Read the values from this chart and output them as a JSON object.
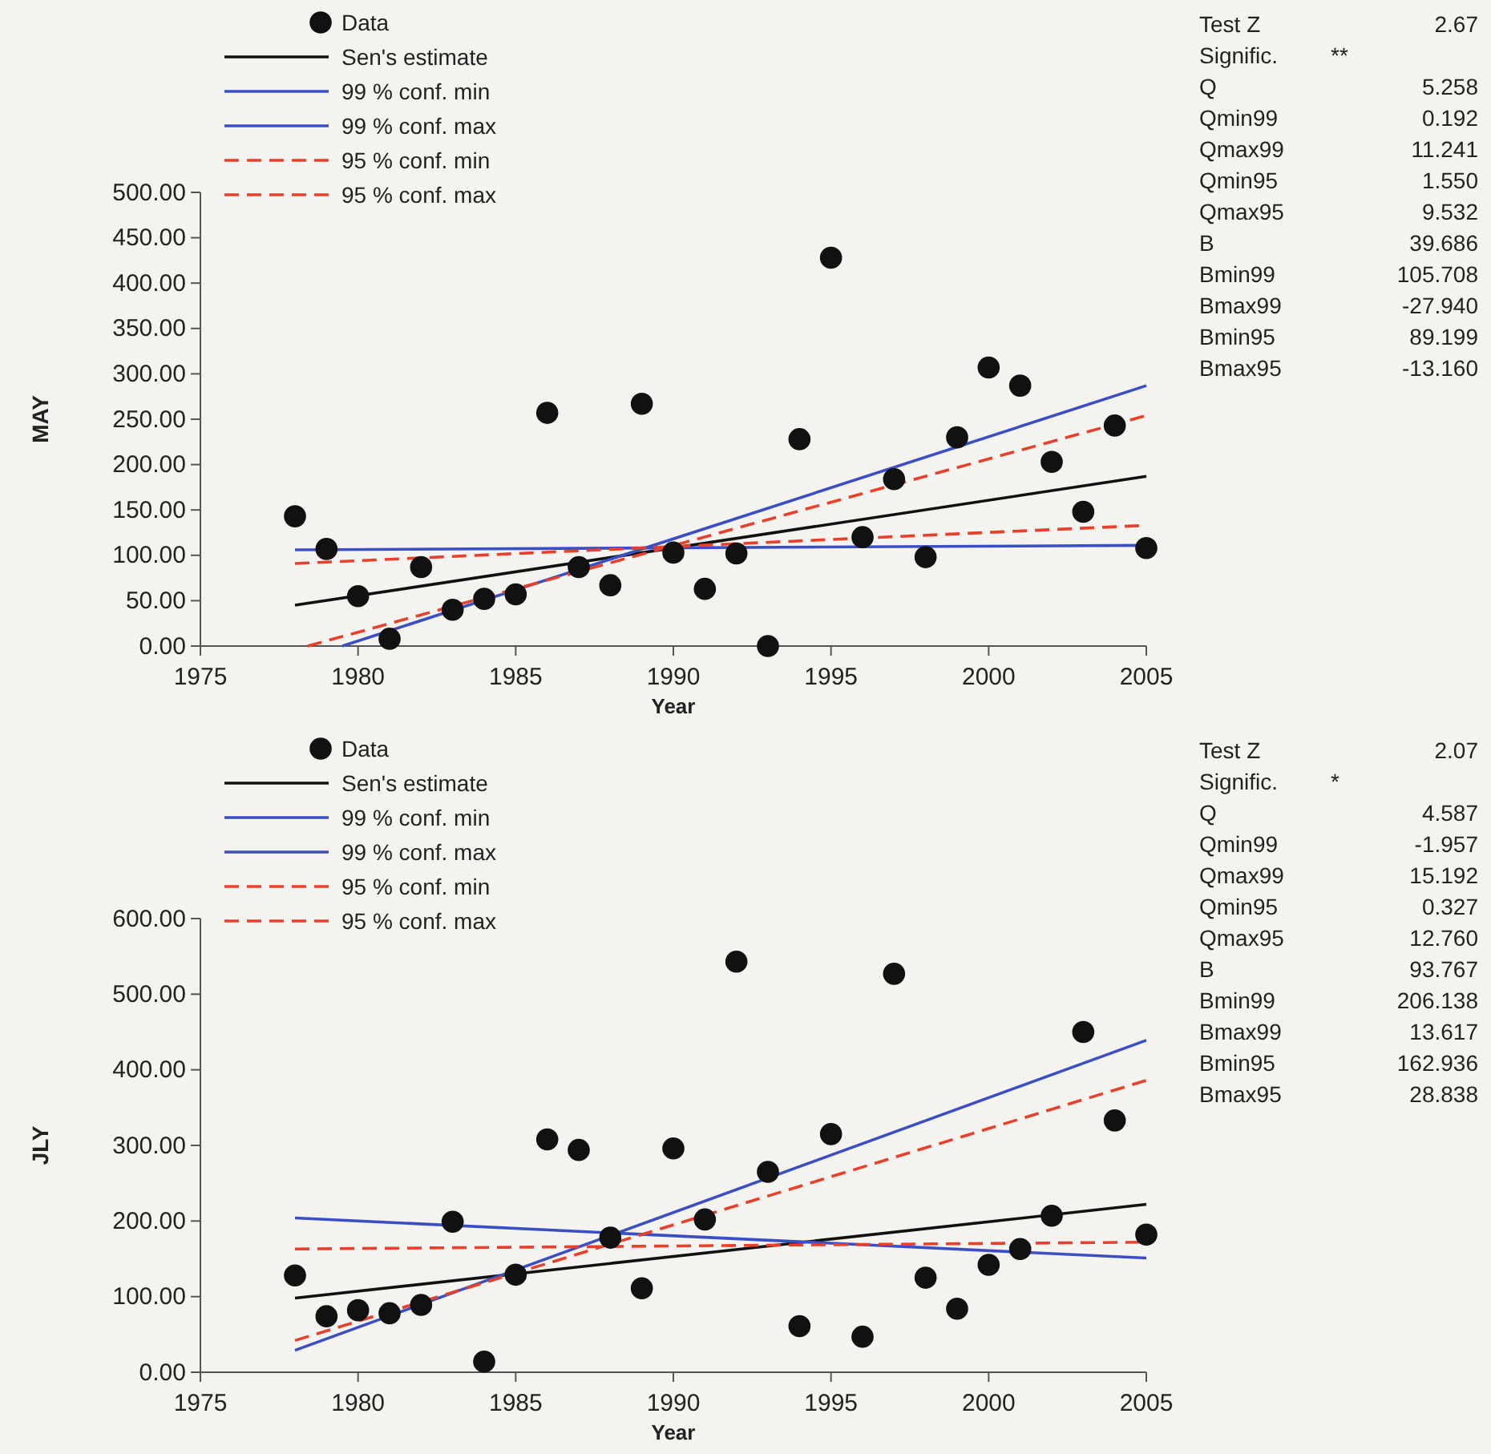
{
  "chart_data": [
    {
      "type": "scatter",
      "xlabel": "Year",
      "ylabel": "MAY",
      "xlim": [
        1975,
        2005
      ],
      "xticks": [
        1975,
        1980,
        1985,
        1990,
        1995,
        2000,
        2005
      ],
      "ylim": [
        0,
        500
      ],
      "yticks": [
        {
          "value": 0,
          "label": "0.00"
        },
        {
          "value": 50,
          "label": "50.00"
        },
        {
          "value": 100,
          "label": "100.00"
        },
        {
          "value": 150,
          "label": "150.00"
        },
        {
          "value": 200,
          "label": "200.00"
        },
        {
          "value": 250,
          "label": "250.00"
        },
        {
          "value": 300,
          "label": "300.00"
        },
        {
          "value": 350,
          "label": "350.00"
        },
        {
          "value": 400,
          "label": "400.00"
        },
        {
          "value": 450,
          "label": "450.00"
        },
        {
          "value": 500,
          "label": "500.00"
        }
      ],
      "legend": "top left",
      "grid": false,
      "series": [
        {
          "name": "Data",
          "type": "scatter",
          "marker": "circle",
          "color": "#111111",
          "x": [
            1978,
            1979,
            1980,
            1981,
            1982,
            1983,
            1984,
            1985,
            1986,
            1987,
            1988,
            1989,
            1990,
            1991,
            1992,
            1993,
            1994,
            1995,
            1996,
            1997,
            1998,
            1999,
            2000,
            2001,
            2002,
            2003,
            2004,
            2005
          ],
          "values": [
            143,
            107,
            55,
            8,
            87,
            40,
            52,
            57,
            257,
            87,
            67,
            267,
            103,
            63,
            102,
            0,
            228,
            428,
            120,
            184,
            98,
            230,
            307,
            287,
            203,
            148,
            243,
            108
          ]
        },
        {
          "name": "Sen's estimate",
          "type": "line",
          "color": "#111111",
          "line_style": "solid",
          "x": [
            1978,
            2005
          ],
          "values": [
            45,
            187
          ]
        },
        {
          "name": "99 % conf. min",
          "type": "line",
          "color": "#3b4fc4",
          "line_style": "solid",
          "x": [
            1978,
            2005
          ],
          "values": [
            106,
            111
          ]
        },
        {
          "name": "99 % conf. max",
          "type": "line",
          "color": "#3b4fc4",
          "line_style": "solid",
          "x": [
            1979.5,
            2005
          ],
          "values": [
            0,
            287
          ]
        },
        {
          "name": "95 % conf. min",
          "type": "line",
          "color": "#e8402a",
          "line_style": "dashed",
          "x": [
            1978,
            2005
          ],
          "values": [
            91,
            133
          ]
        },
        {
          "name": "95 % conf. max",
          "type": "line",
          "color": "#e8402a",
          "line_style": "dashed",
          "x": [
            1978.4,
            2005
          ],
          "values": [
            0,
            254
          ]
        }
      ],
      "annotations": [
        "Test Z 2.67",
        "Signific. **",
        "Q 5.258",
        "Qmin99 0.192",
        "Qmax99 11.241",
        "Qmin95 1.550",
        "Qmax95 9.532",
        "B 39.686",
        "Bmin99 105.708",
        "Bmax99 -27.940",
        "Bmin95 89.199",
        "Bmax95 -13.160"
      ]
    },
    {
      "type": "scatter",
      "xlabel": "Year",
      "ylabel": "JLY",
      "xlim": [
        1975,
        2005
      ],
      "xticks": [
        1975,
        1980,
        1985,
        1990,
        1995,
        2000,
        2005
      ],
      "ylim": [
        0,
        600
      ],
      "yticks": [
        {
          "value": 0,
          "label": "0.00"
        },
        {
          "value": 100,
          "label": "100.00"
        },
        {
          "value": 200,
          "label": "200.00"
        },
        {
          "value": 300,
          "label": "300.00"
        },
        {
          "value": 400,
          "label": "400.00"
        },
        {
          "value": 500,
          "label": "500.00"
        },
        {
          "value": 600,
          "label": "600.00"
        }
      ],
      "legend": "top left",
      "grid": false,
      "series": [
        {
          "name": "Data",
          "type": "scatter",
          "marker": "circle",
          "color": "#111111",
          "x": [
            1978,
            1979,
            1980,
            1981,
            1982,
            1983,
            1984,
            1985,
            1986,
            1987,
            1988,
            1989,
            1990,
            1991,
            1992,
            1993,
            1994,
            1995,
            1996,
            1997,
            1998,
            1999,
            2000,
            2001,
            2002,
            2003,
            2004,
            2005
          ],
          "values": [
            128,
            74,
            82,
            78,
            89,
            199,
            14,
            129,
            308,
            294,
            178,
            111,
            296,
            202,
            543,
            265,
            61,
            315,
            47,
            527,
            125,
            84,
            142,
            163,
            207,
            450,
            333,
            182
          ]
        },
        {
          "name": "Sen's estimate",
          "type": "line",
          "color": "#111111",
          "line_style": "solid",
          "x": [
            1978,
            2005
          ],
          "values": [
            98,
            222
          ]
        },
        {
          "name": "99 % conf. min",
          "type": "line",
          "color": "#3b4fc4",
          "line_style": "solid",
          "x": [
            1978,
            2005
          ],
          "values": [
            204,
            151
          ]
        },
        {
          "name": "99 % conf. max",
          "type": "line",
          "color": "#3b4fc4",
          "line_style": "solid",
          "x": [
            1978,
            2005
          ],
          "values": [
            29,
            439
          ]
        },
        {
          "name": "95 % conf. min",
          "type": "line",
          "color": "#e8402a",
          "line_style": "dashed",
          "x": [
            1978,
            2005
          ],
          "values": [
            163,
            172
          ]
        },
        {
          "name": "95 % conf. max",
          "type": "line",
          "color": "#e8402a",
          "line_style": "dashed",
          "x": [
            1978,
            2005
          ],
          "values": [
            42,
            386
          ]
        }
      ],
      "annotations": [
        "Test Z 2.07",
        "Signific. *",
        "Q 4.587",
        "Qmin99 -1.957",
        "Qmax99 15.192",
        "Qmin95 0.327",
        "Qmax95 12.760",
        "B 93.767",
        "Bmin99 206.138",
        "Bmax99 13.617",
        "Bmin95 162.936",
        "Bmax95 28.838"
      ]
    }
  ]
}
